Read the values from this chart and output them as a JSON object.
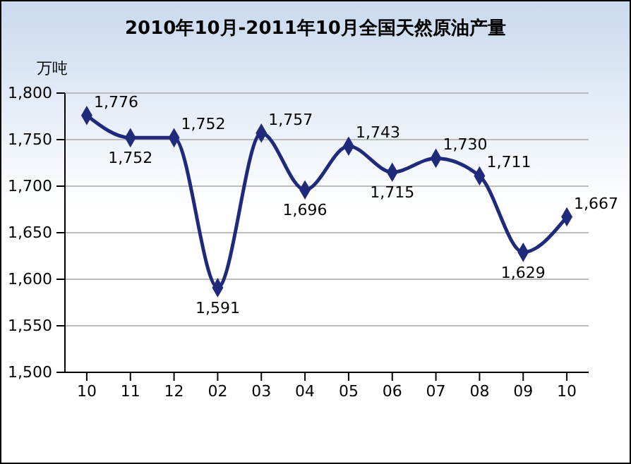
{
  "chart_data": {
    "type": "line",
    "title": "2010年10月-2011年10月全国天然原油产量",
    "ylabel": "万吨",
    "categories": [
      "10",
      "11",
      "12",
      "02",
      "03",
      "04",
      "05",
      "06",
      "07",
      "08",
      "09",
      "10"
    ],
    "series": [
      {
        "color": "#1f2a7a",
        "values": [
          1776,
          1752,
          1752,
          1591,
          1757,
          1696,
          1743,
          1715,
          1730,
          1711,
          1629,
          1667
        ],
        "value_labels": [
          "1,776",
          "1,752",
          "1,752",
          "1,591",
          "1,757",
          "1,696",
          "1,743",
          "1,715",
          "1,730",
          "1,711",
          "1,629",
          "1,667"
        ]
      }
    ],
    "ylim": [
      1500,
      1800
    ],
    "yticks": [
      {
        "value": 1500,
        "label": "1,500"
      },
      {
        "value": 1550,
        "label": "1,550"
      },
      {
        "value": 1600,
        "label": "1,600"
      },
      {
        "value": 1650,
        "label": "1,650"
      },
      {
        "value": 1700,
        "label": "1,700"
      },
      {
        "value": 1750,
        "label": "1,750"
      },
      {
        "value": 1800,
        "label": "1,800"
      }
    ],
    "grid": "y",
    "marker": "diamond",
    "line_style": "solid"
  }
}
